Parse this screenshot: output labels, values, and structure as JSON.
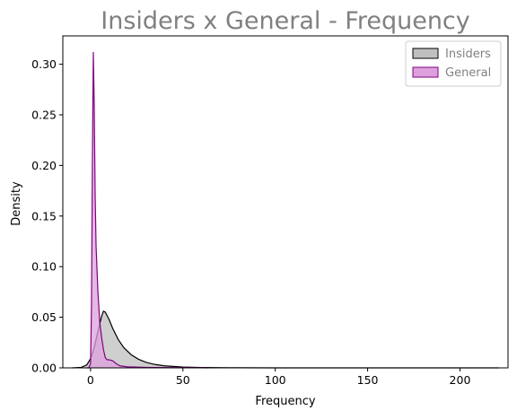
{
  "chart_data": {
    "type": "area",
    "title": "Insiders x General - Frequency",
    "xlabel": "Frequency",
    "ylabel": "Density",
    "xlim": [
      -15,
      226
    ],
    "ylim": [
      0,
      0.328
    ],
    "xticks": [
      0,
      50,
      100,
      150,
      200
    ],
    "yticks": [
      0.0,
      0.05,
      0.1,
      0.15,
      0.2,
      0.25,
      0.3
    ],
    "ytick_labels": [
      "0.00",
      "0.05",
      "0.10",
      "0.15",
      "0.20",
      "0.25",
      "0.30"
    ],
    "grid": false,
    "legend_position": "top-right",
    "title_color": "#808080",
    "legend_text_color": "#808080",
    "series": [
      {
        "name": "Insiders",
        "line_color": "#000000",
        "fill_color": "#bfbfbf",
        "x": [
          -10,
          -5,
          -2,
          0,
          2,
          4,
          6,
          7,
          8,
          10,
          12,
          15,
          18,
          22,
          26,
          30,
          35,
          40,
          50,
          60,
          80,
          100,
          150,
          200,
          221
        ],
        "y": [
          0.0,
          0.0005,
          0.003,
          0.009,
          0.02,
          0.036,
          0.051,
          0.056,
          0.055,
          0.048,
          0.039,
          0.028,
          0.02,
          0.013,
          0.0085,
          0.0055,
          0.0033,
          0.002,
          0.0008,
          0.0004,
          0.0001,
          0.0,
          0.0,
          0.0,
          0.0
        ]
      },
      {
        "name": "General",
        "line_color": "#800080",
        "fill_color": "#dda0dd",
        "x": [
          -2,
          -1,
          0,
          0.5,
          1,
          1.5,
          2,
          2.5,
          3,
          4,
          5,
          6,
          7,
          8,
          9,
          10,
          12,
          14,
          16,
          20,
          30,
          45,
          60,
          64
        ],
        "y": [
          0.0,
          0.0,
          0.004,
          0.06,
          0.2,
          0.312,
          0.26,
          0.17,
          0.12,
          0.075,
          0.045,
          0.03,
          0.018,
          0.01,
          0.008,
          0.008,
          0.007,
          0.004,
          0.002,
          0.001,
          0.0005,
          0.0002,
          0.0001,
          0.0
        ]
      }
    ]
  }
}
